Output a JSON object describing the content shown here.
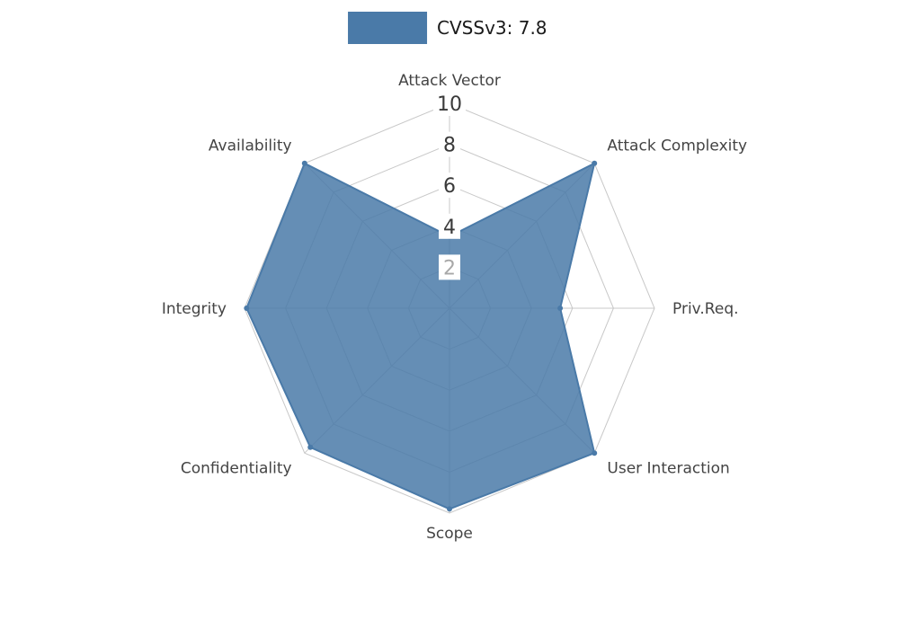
{
  "legend": {
    "label": "CVSSv3: 7.8",
    "swatch_color": "#4a7aa8"
  },
  "chart_data": {
    "type": "radar",
    "title": "CVSSv3: 7.8",
    "categories": [
      "Attack Vector",
      "Attack Complexity",
      "Priv.Req.",
      "User Interaction",
      "Scope",
      "Confidentiality",
      "Integrity",
      "Availability"
    ],
    "values": [
      3.5,
      10,
      5.4,
      10,
      9.8,
      9.6,
      9.9,
      10
    ],
    "radial_ticks": [
      2,
      4,
      6,
      8,
      10
    ],
    "rlim": [
      0,
      10
    ],
    "start_angle_deg": 90,
    "direction": "clockwise",
    "grid": true,
    "legend_position": "top-center",
    "series_color": "#4a7aa8",
    "fill_opacity": 0.85,
    "grid_color": "#c8c8c8",
    "axis_label_color": "#444444",
    "tick_label_color": "#3a3a3a",
    "tick_label_color_innermost": "#a8a8a8",
    "tick_label_background": "#ffffff"
  }
}
